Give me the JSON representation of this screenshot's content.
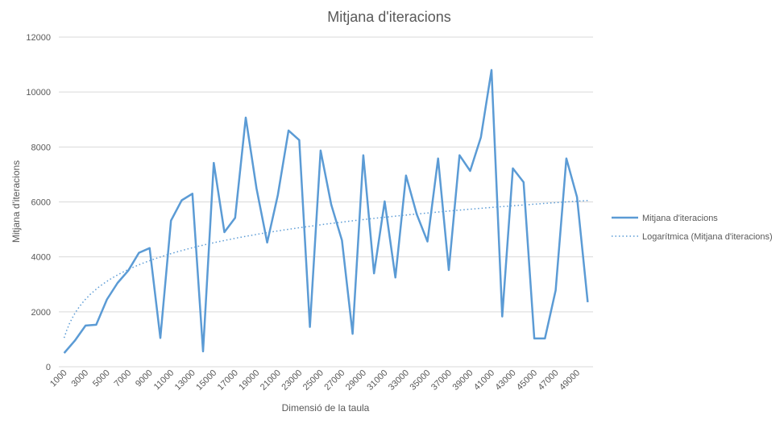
{
  "chart_data": {
    "type": "line",
    "title": "Mitjana d'iteracions",
    "xlabel": "Dimensió de la taula",
    "ylabel": "Mitjana d'iteracions",
    "ylim": [
      0,
      12000
    ],
    "yticks": [
      "0",
      "2000",
      "4000",
      "6000",
      "8000",
      "10000",
      "12000"
    ],
    "x": [
      1000,
      2000,
      3000,
      4000,
      5000,
      6000,
      7000,
      8000,
      9000,
      10000,
      11000,
      12000,
      13000,
      14000,
      15000,
      16000,
      17000,
      18000,
      19000,
      20000,
      21000,
      22000,
      23000,
      24000,
      25000,
      26000,
      27000,
      28000,
      29000,
      30000,
      31000,
      32000,
      33000,
      34000,
      35000,
      36000,
      37000,
      38000,
      39000,
      40000,
      41000,
      42000,
      43000,
      44000,
      45000,
      46000,
      47000,
      48000,
      49000,
      50000
    ],
    "x_tick_labels": [
      "1000",
      "3000",
      "5000",
      "7000",
      "9000",
      "11000",
      "13000",
      "15000",
      "17000",
      "19000",
      "21000",
      "23000",
      "25000",
      "27000",
      "29000",
      "31000",
      "33000",
      "35000",
      "37000",
      "39000",
      "41000",
      "43000",
      "45000",
      "47000",
      "49000"
    ],
    "series": [
      {
        "name": "Mitjana d'iteracions",
        "color": "#5b9bd5",
        "style": "solid",
        "values": [
          500,
          950,
          1500,
          1530,
          2450,
          3050,
          3500,
          4150,
          4320,
          1050,
          5320,
          6060,
          6300,
          560,
          7420,
          4900,
          5420,
          9070,
          6500,
          4520,
          6250,
          8600,
          8250,
          1450,
          7870,
          5900,
          4600,
          1200,
          7700,
          3400,
          6020,
          3250,
          6960,
          5550,
          4560,
          7580,
          3520,
          7700,
          7130,
          8350,
          10800,
          1830,
          7220,
          6720,
          1030,
          1030,
          2780,
          7580,
          6180,
          2350
        ]
      },
      {
        "name": "Logarítmica (Mitjana d'iteracions)",
        "color": "#5b9bd5",
        "style": "dotted",
        "trendline": "logarithmic"
      }
    ],
    "grid": true,
    "legend_position": "right"
  }
}
